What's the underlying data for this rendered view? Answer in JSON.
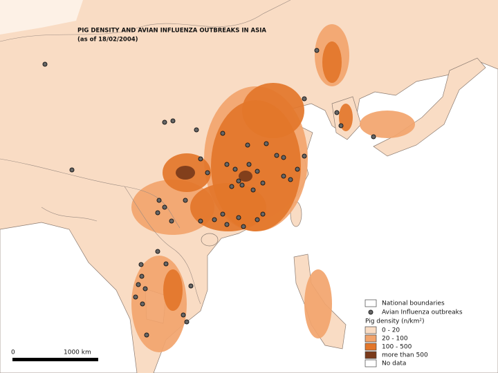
{
  "title": "PIG DENSITY AND AVIAN INFLUENZA OUTBREAKS IN ASIA",
  "subtitle": "(as of 18/02/2004)",
  "legend": {
    "boundaries": "National boundaries",
    "outbreaks": "Avian Influenza outbreaks",
    "density_title": "Pig density (n/km²)",
    "classes": [
      {
        "label": "0 - 20",
        "color": "#f9dcc4"
      },
      {
        "label": "20 - 100",
        "color": "#f2a46c"
      },
      {
        "label": "100 - 500",
        "color": "#e3762a"
      },
      {
        "label": "more than 500",
        "color": "#7a3a1a"
      },
      {
        "label": "No data",
        "color": "#ffffff"
      }
    ]
  },
  "scale_bar": {
    "start": "0",
    "end": "1000 km"
  }
}
